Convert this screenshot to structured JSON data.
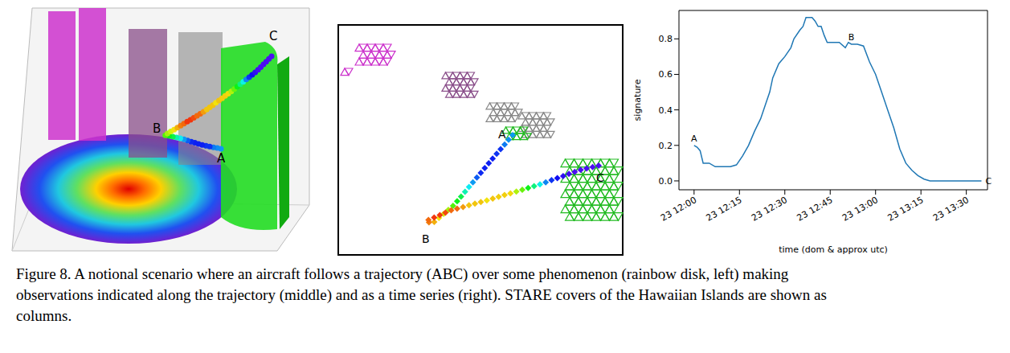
{
  "panels": {
    "scene_3d": {
      "labels": [
        "A",
        "B",
        "C"
      ]
    },
    "map": {
      "labels": [
        "A",
        "B",
        "C"
      ]
    }
  },
  "chart_data": {
    "type": "line",
    "x_label": "time (dom & approx utc)",
    "y_label": "signature",
    "x": [
      0,
      1,
      2,
      3,
      5,
      7,
      10,
      12,
      14,
      16,
      18,
      20,
      22,
      24,
      25,
      26,
      28,
      30,
      32,
      33,
      35,
      36,
      37,
      39,
      40,
      41,
      42,
      43,
      44,
      46,
      48,
      50,
      51,
      52,
      54,
      56,
      58,
      60,
      62,
      64,
      66,
      68,
      70,
      72,
      74,
      76,
      78,
      80,
      85,
      90,
      95
    ],
    "series": [
      {
        "name": "signature",
        "color": "#1f77b4",
        "values": [
          0.2,
          0.19,
          0.17,
          0.1,
          0.1,
          0.08,
          0.08,
          0.08,
          0.09,
          0.14,
          0.2,
          0.28,
          0.35,
          0.45,
          0.5,
          0.58,
          0.66,
          0.7,
          0.75,
          0.8,
          0.85,
          0.87,
          0.92,
          0.92,
          0.9,
          0.87,
          0.87,
          0.82,
          0.78,
          0.78,
          0.78,
          0.75,
          0.78,
          0.77,
          0.77,
          0.76,
          0.67,
          0.6,
          0.5,
          0.4,
          0.3,
          0.18,
          0.1,
          0.06,
          0.03,
          0.01,
          0,
          0,
          0,
          0,
          0
        ]
      }
    ],
    "xlim": [
      -5,
      97
    ],
    "xticks": [
      {
        "value": 0,
        "label": "23 12:00"
      },
      {
        "value": 15,
        "label": "23 12:15"
      },
      {
        "value": 30,
        "label": "23 12:30"
      },
      {
        "value": 45,
        "label": "23 12:45"
      },
      {
        "value": 60,
        "label": "23 13:00"
      },
      {
        "value": 75,
        "label": "23 13:15"
      },
      {
        "value": 90,
        "label": "23 13:30"
      }
    ],
    "ylim": [
      -0.05,
      0.96
    ],
    "yticks": [
      {
        "value": 0,
        "label": "0.0"
      },
      0.2,
      0.4,
      0.6,
      0.8
    ],
    "grid": false,
    "annotations": [
      {
        "text": "A",
        "x": 0,
        "y": 0.2
      },
      {
        "text": "B",
        "x": 52,
        "y": 0.77
      },
      {
        "text": "C",
        "x": 95,
        "y": 0
      }
    ]
  },
  "caption": "Figure 8. A notional scenario where an aircraft follows a trajectory (ABC) over some phenomenon (rainbow disk, left) making observations indicated along the trajectory (middle) and as a time series (right). STARE covers of the Hawaiian Islands are shown as columns."
}
